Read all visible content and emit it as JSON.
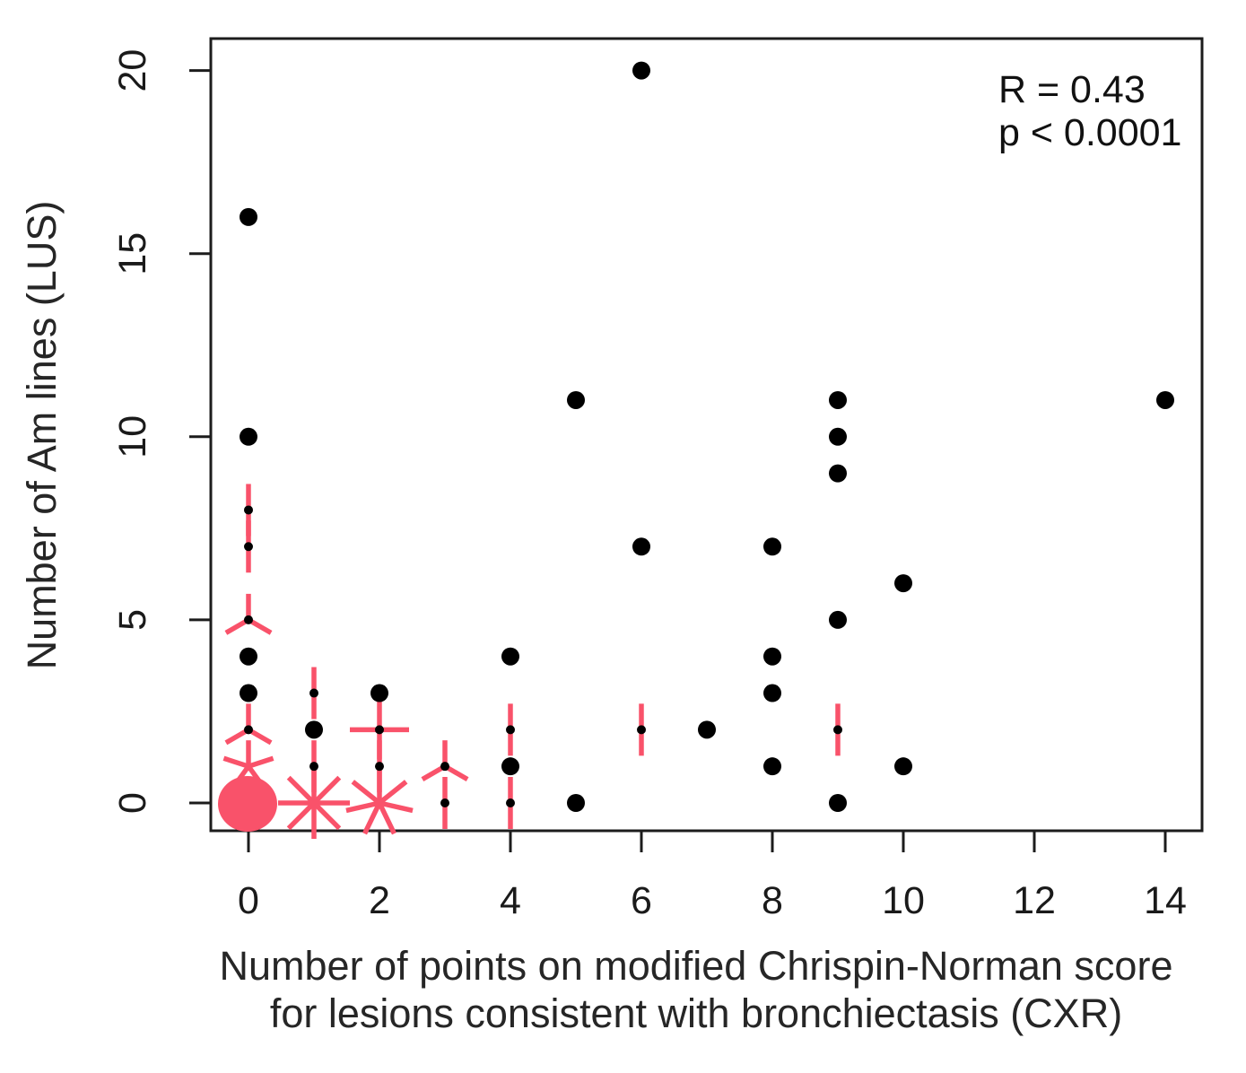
{
  "figure": {
    "background": "#ffffff"
  },
  "chart_data": {
    "type": "scatter",
    "title": "",
    "xlabel_line1": "Number of points on modified Chrispin-Norman score",
    "xlabel_line2": "for lesions consistent with bronchiectasis (CXR)",
    "ylabel": "Number of Am lines (LUS)",
    "annotation_r": "R = 0.43",
    "annotation_p": "p < 0.0001",
    "xlim": [
      -0.6,
      14.6
    ],
    "ylim": [
      -0.8,
      20.9
    ],
    "x_ticks": [
      0,
      2,
      4,
      6,
      8,
      10,
      12,
      14
    ],
    "y_ticks": [
      0,
      5,
      10,
      15,
      20
    ],
    "grid": false,
    "legend": "none",
    "points_single": [
      [
        0,
        16
      ],
      [
        0,
        10
      ],
      [
        0,
        4
      ],
      [
        0,
        3
      ],
      [
        1,
        2
      ],
      [
        2,
        3
      ],
      [
        4,
        4
      ],
      [
        4,
        1
      ],
      [
        5,
        11
      ],
      [
        5,
        0
      ],
      [
        6,
        20
      ],
      [
        6,
        7
      ],
      [
        7,
        2
      ],
      [
        8,
        7
      ],
      [
        8,
        4
      ],
      [
        8,
        3
      ],
      [
        8,
        1
      ],
      [
        9,
        11
      ],
      [
        9,
        10
      ],
      [
        9,
        9
      ],
      [
        9,
        5
      ],
      [
        9,
        0
      ],
      [
        10,
        6
      ],
      [
        10,
        1
      ],
      [
        14,
        11
      ]
    ],
    "sunflowers": [
      {
        "x": 0,
        "y": 8,
        "leaves": 2,
        "center_dot": true
      },
      {
        "x": 0,
        "y": 7,
        "leaves": 2,
        "center_dot": true
      },
      {
        "x": 0,
        "y": 5,
        "leaves": 3,
        "center_dot": true
      },
      {
        "x": 0,
        "y": 2,
        "leaves": 3,
        "center_dot": true
      },
      {
        "x": 0,
        "y": 1,
        "leaves": 5,
        "center_dot": false
      },
      {
        "x": 1,
        "y": 3,
        "leaves": 2,
        "center_dot": true
      },
      {
        "x": 1,
        "y": 1,
        "leaves": 2,
        "center_dot": true
      },
      {
        "x": 1,
        "y": 0,
        "leaves": 8,
        "center_dot": false,
        "petal_len": 40
      },
      {
        "x": 2,
        "y": 2,
        "leaves": 4,
        "center_dot": true,
        "petal_len": 33
      },
      {
        "x": 2,
        "y": 1,
        "leaves": 2,
        "center_dot": true
      },
      {
        "x": 2,
        "y": 0,
        "leaves": 7,
        "center_dot": false,
        "petal_len": 38
      },
      {
        "x": 3,
        "y": 1,
        "leaves": 3,
        "center_dot": true
      },
      {
        "x": 3,
        "y": 0,
        "leaves": 2,
        "center_dot": true
      },
      {
        "x": 4,
        "y": 2,
        "leaves": 2,
        "center_dot": true
      },
      {
        "x": 4,
        "y": 0,
        "leaves": 2,
        "center_dot": true
      },
      {
        "x": 6,
        "y": 2,
        "leaves": 2,
        "center_dot": true
      },
      {
        "x": 9,
        "y": 2,
        "leaves": 2,
        "center_dot": true
      }
    ],
    "cluster_disc": {
      "x": 0,
      "y": 0,
      "note": "large overlapping-point cluster drawn as solid disc"
    },
    "colors": {
      "point": "#000000",
      "sunflower": "#f9526a",
      "axis": "#1c1c1c",
      "tick_text": "#1a1a1a",
      "title_text": "#262626",
      "annotation_text": "#111111"
    }
  }
}
